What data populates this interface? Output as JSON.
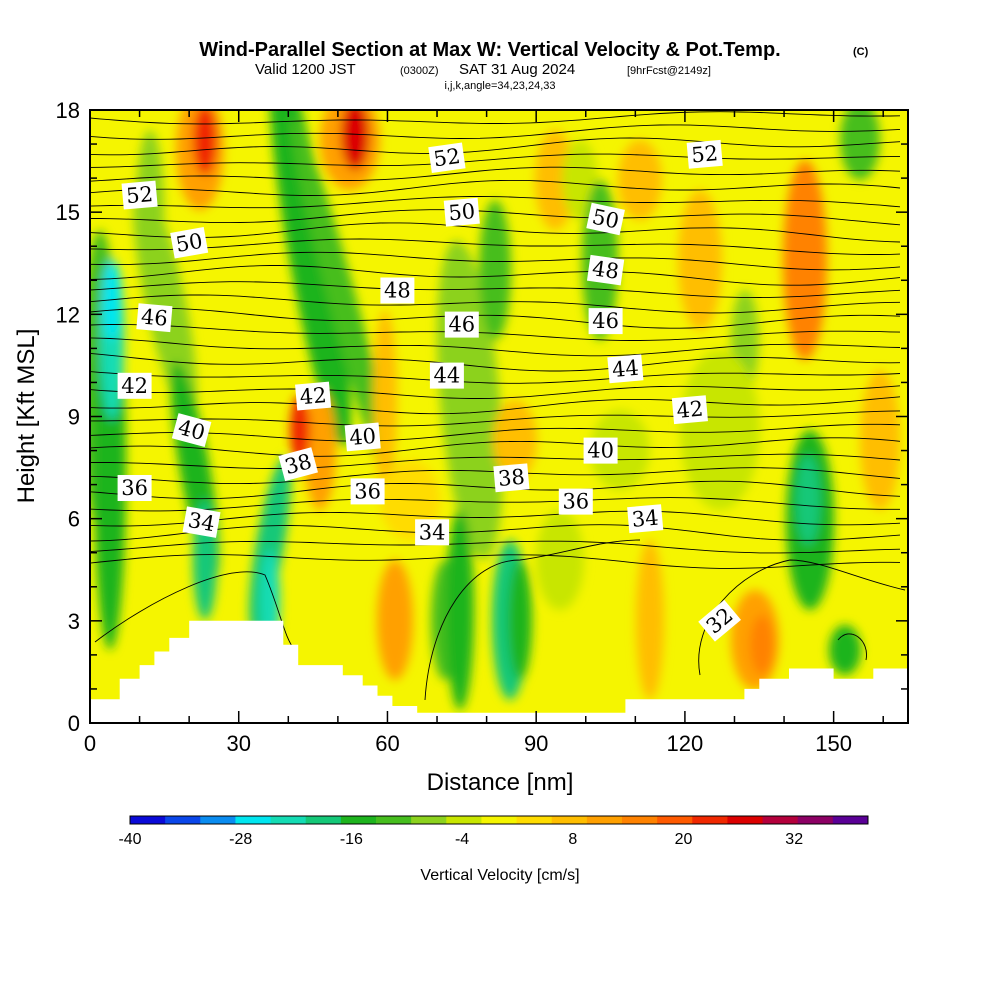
{
  "header": {
    "title": "Wind-Parallel Section at Max W: Vertical Velocity & Pot.Temp.",
    "copyright": "(C)",
    "valid_prefix": "Valid 1200 JST",
    "valid_utc": "(0300Z)",
    "valid_date": "SAT 31 Aug 2024",
    "forecast": "[9hrFcst@2149z]",
    "grid_info": "i,j,k,angle=34,23,24,33"
  },
  "chart_data": {
    "type": "heatmap",
    "xlabel": "Distance [nm]",
    "ylabel": "Height [Kft MSL]",
    "xlim": [
      0,
      165
    ],
    "ylim": [
      0,
      18
    ],
    "x_ticks": [
      "0",
      "30",
      "60",
      "90",
      "120",
      "150"
    ],
    "x_tick_values": [
      0,
      30,
      60,
      90,
      120,
      150
    ],
    "y_ticks": [
      "0",
      "3",
      "6",
      "9",
      "12",
      "15",
      "18"
    ],
    "y_tick_values": [
      0,
      3,
      6,
      9,
      12,
      15,
      18
    ],
    "colorbar": {
      "label": "Vertical Velocity [cm/s]",
      "tick_labels": [
        "-40",
        "-28",
        "-16",
        "-4",
        "8",
        "20",
        "32"
      ],
      "tick_values": [
        -40,
        -28,
        -16,
        -4,
        8,
        20,
        32
      ],
      "range": [
        -40,
        40
      ],
      "step": 4,
      "colors": [
        "#0a0ad8",
        "#0a46ea",
        "#0a8cf0",
        "#00e6f0",
        "#14dcb4",
        "#14c878",
        "#1eb41e",
        "#46be1e",
        "#8cd21e",
        "#c8e600",
        "#f5f500",
        "#ffdc00",
        "#ffbe00",
        "#ffa000",
        "#ff8200",
        "#ff5a00",
        "#f02800",
        "#dc0000",
        "#b4003c",
        "#8c0064",
        "#5a0096"
      ]
    },
    "contour_labels": [
      {
        "text": "52",
        "x": 10,
        "y": 15.5,
        "angle": -5
      },
      {
        "text": "50",
        "x": 20,
        "y": 14.1,
        "angle": -10
      },
      {
        "text": "46",
        "x": 13,
        "y": 11.9,
        "angle": 5
      },
      {
        "text": "42",
        "x": 9,
        "y": 9.9,
        "angle": 0
      },
      {
        "text": "40",
        "x": 20.5,
        "y": 8.6,
        "angle": 15
      },
      {
        "text": "36",
        "x": 9,
        "y": 6.9,
        "angle": 0
      },
      {
        "text": "34",
        "x": 22.5,
        "y": 5.9,
        "angle": 10
      },
      {
        "text": "42",
        "x": 45,
        "y": 9.6,
        "angle": -5
      },
      {
        "text": "38",
        "x": 42,
        "y": 7.6,
        "angle": -15
      },
      {
        "text": "40",
        "x": 55,
        "y": 8.4,
        "angle": -5
      },
      {
        "text": "36",
        "x": 56,
        "y": 6.8,
        "angle": 0
      },
      {
        "text": "48",
        "x": 62,
        "y": 12.7,
        "angle": 0
      },
      {
        "text": "52",
        "x": 72,
        "y": 16.6,
        "angle": -8
      },
      {
        "text": "50",
        "x": 75,
        "y": 15.0,
        "angle": -5
      },
      {
        "text": "46",
        "x": 75,
        "y": 11.7,
        "angle": 0
      },
      {
        "text": "44",
        "x": 72,
        "y": 10.2,
        "angle": 0
      },
      {
        "text": "34",
        "x": 69,
        "y": 5.6,
        "angle": 0
      },
      {
        "text": "38",
        "x": 85,
        "y": 7.2,
        "angle": -5
      },
      {
        "text": "36",
        "x": 98,
        "y": 6.5,
        "angle": 0
      },
      {
        "text": "50",
        "x": 104,
        "y": 14.8,
        "angle": 12
      },
      {
        "text": "48",
        "x": 104,
        "y": 13.3,
        "angle": 8
      },
      {
        "text": "46",
        "x": 104,
        "y": 11.8,
        "angle": 0
      },
      {
        "text": "44",
        "x": 108,
        "y": 10.4,
        "angle": -5
      },
      {
        "text": "40",
        "x": 103,
        "y": 8.0,
        "angle": 0
      },
      {
        "text": "34",
        "x": 112,
        "y": 6.0,
        "angle": -5
      },
      {
        "text": "42",
        "x": 121,
        "y": 9.2,
        "angle": -5
      },
      {
        "text": "52",
        "x": 124,
        "y": 16.7,
        "angle": -5
      },
      {
        "text": "32",
        "x": 127,
        "y": 3.0,
        "angle": -40
      }
    ],
    "terrain_profile": [
      [
        0,
        0.7
      ],
      [
        6,
        0.7
      ],
      [
        6,
        1.3
      ],
      [
        10,
        1.3
      ],
      [
        10,
        1.7
      ],
      [
        13,
        1.7
      ],
      [
        13,
        2.1
      ],
      [
        16,
        2.1
      ],
      [
        16,
        2.5
      ],
      [
        20,
        2.5
      ],
      [
        20,
        3.0
      ],
      [
        39,
        3.0
      ],
      [
        39,
        2.3
      ],
      [
        42,
        2.3
      ],
      [
        42,
        1.7
      ],
      [
        51,
        1.7
      ],
      [
        51,
        1.4
      ],
      [
        55,
        1.4
      ],
      [
        55,
        1.1
      ],
      [
        58,
        1.1
      ],
      [
        58,
        0.8
      ],
      [
        61,
        0.8
      ],
      [
        61,
        0.5
      ],
      [
        66,
        0.5
      ],
      [
        66,
        0.3
      ],
      [
        108,
        0.3
      ],
      [
        108,
        0.7
      ],
      [
        132,
        0.7
      ],
      [
        132,
        1.0
      ],
      [
        135,
        1.0
      ],
      [
        135,
        1.3
      ],
      [
        141,
        1.3
      ],
      [
        141,
        1.6
      ],
      [
        150,
        1.6
      ],
      [
        150,
        1.3
      ],
      [
        158,
        1.3
      ],
      [
        158,
        1.6
      ],
      [
        165,
        1.6
      ]
    ]
  }
}
